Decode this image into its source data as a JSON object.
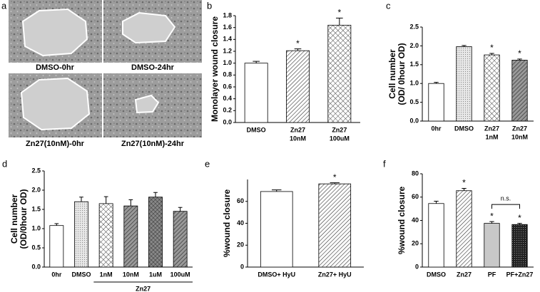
{
  "panel_a": {
    "label": "a",
    "captions": [
      "DMSO-0hr",
      "DMSO-24hr",
      "Zn27(10nM)-0hr",
      "Zn27(10nM)-24hr"
    ]
  },
  "chart_data": [
    {
      "type": "bar",
      "panel": "b",
      "ylabel": [
        "Monolayer wound closure"
      ],
      "categories": [
        [
          "DMSO"
        ],
        [
          "Zn27",
          "10nM"
        ],
        [
          "Zn27",
          "100uM"
        ]
      ],
      "values": [
        1.0,
        1.21,
        1.64
      ],
      "errors": [
        0.03,
        0.03,
        0.12
      ],
      "significance": [
        null,
        "*",
        "*"
      ],
      "fills": [
        "white",
        "diagonal",
        "crosshatch"
      ],
      "ylim": [
        0,
        1.8
      ],
      "yticks": [
        {
          "value": 0,
          "label": "0.0"
        },
        {
          "value": 0.2,
          "label": "0.2"
        },
        {
          "value": 0.4,
          "label": "0.4"
        },
        {
          "value": 0.6,
          "label": "0.6"
        },
        {
          "value": 0.8,
          "label": "0.8"
        },
        {
          "value": 1,
          "label": "1.0"
        },
        {
          "value": 1.2,
          "label": "1.2"
        },
        {
          "value": 1.4,
          "label": "1.4"
        },
        {
          "value": 1.6,
          "label": "1.6"
        },
        {
          "value": 1.8,
          "label": "1.8"
        }
      ]
    },
    {
      "type": "bar",
      "panel": "c",
      "ylabel": [
        "Cell number",
        "(OD/ 0hour OD)"
      ],
      "categories": [
        [
          "0hr"
        ],
        [
          "DMSO"
        ],
        [
          "Zn27",
          "1nM"
        ],
        [
          "Zn27",
          "10nM"
        ]
      ],
      "values": [
        1.0,
        1.98,
        1.76,
        1.62
      ],
      "errors": [
        0.03,
        0.03,
        0.04,
        0.03
      ],
      "significance": [
        null,
        null,
        "*",
        "*"
      ],
      "fills": [
        "white",
        "dots",
        "crosshatch",
        "dark-diagonal"
      ],
      "ylim": [
        0,
        2.5
      ],
      "yticks": [
        {
          "value": 0,
          "label": "0.0"
        },
        {
          "value": 0.5,
          "label": "0.5"
        },
        {
          "value": 1,
          "label": "1.0"
        },
        {
          "value": 1.5,
          "label": "1.5"
        },
        {
          "value": 2,
          "label": "2.0"
        },
        {
          "value": 2.5,
          "label": "2.5"
        }
      ]
    },
    {
      "type": "bar",
      "panel": "d",
      "ylabel": [
        "Cell number",
        "(OD/0hour OD)"
      ],
      "categories": [
        [
          "0hr"
        ],
        [
          "DMSO"
        ],
        [
          "1nM"
        ],
        [
          "10nM"
        ],
        [
          "1uM"
        ],
        [
          "100uM"
        ]
      ],
      "group_label": "Zn27",
      "values": [
        1.08,
        1.7,
        1.65,
        1.59,
        1.82,
        1.45
      ],
      "errors": [
        0.05,
        0.12,
        0.18,
        0.16,
        0.12,
        0.1
      ],
      "significance": [
        null,
        null,
        null,
        null,
        null,
        null
      ],
      "fills": [
        "white",
        "dots",
        "crosshatch",
        "dark-diagonal",
        "dark-crosshatch",
        "dark-diagonal"
      ],
      "ylim": [
        0,
        2.5
      ],
      "yticks": [
        {
          "value": 0,
          "label": "0.0"
        },
        {
          "value": 0.5,
          "label": "0.5"
        },
        {
          "value": 1,
          "label": "1.0"
        },
        {
          "value": 1.5,
          "label": "1.5"
        },
        {
          "value": 2,
          "label": "2.0"
        },
        {
          "value": 2.5,
          "label": "2.5"
        }
      ]
    },
    {
      "type": "bar",
      "panel": "e",
      "ylabel": [
        "%wound closure"
      ],
      "categories": [
        [
          "DMSO+ HyU"
        ],
        [
          "Zn27+ HyU"
        ]
      ],
      "values": [
        69,
        76
      ],
      "errors": [
        1.5,
        1
      ],
      "significance": [
        null,
        "*"
      ],
      "fills": [
        "white",
        "diagonal"
      ],
      "ylim": [
        0,
        80
      ],
      "yticks": [
        0,
        20,
        40,
        60
      ]
    },
    {
      "type": "bar",
      "panel": "f",
      "ylabel": [
        "%wound closure"
      ],
      "categories": [
        [
          "DMSO"
        ],
        [
          "Zn27"
        ],
        [
          "PF"
        ],
        [
          "PF+Zn27"
        ]
      ],
      "annotation": "n.s.",
      "values": [
        54.5,
        65.5,
        37.5,
        36.5
      ],
      "errors": [
        2,
        2,
        1.5,
        1
      ],
      "significance": [
        null,
        "*",
        "*",
        "*"
      ],
      "fills": [
        "white",
        "diagonal",
        "gray",
        "black-dots"
      ],
      "ylim": [
        0,
        80
      ],
      "yticks": [
        0,
        20,
        40,
        60,
        80
      ]
    }
  ]
}
